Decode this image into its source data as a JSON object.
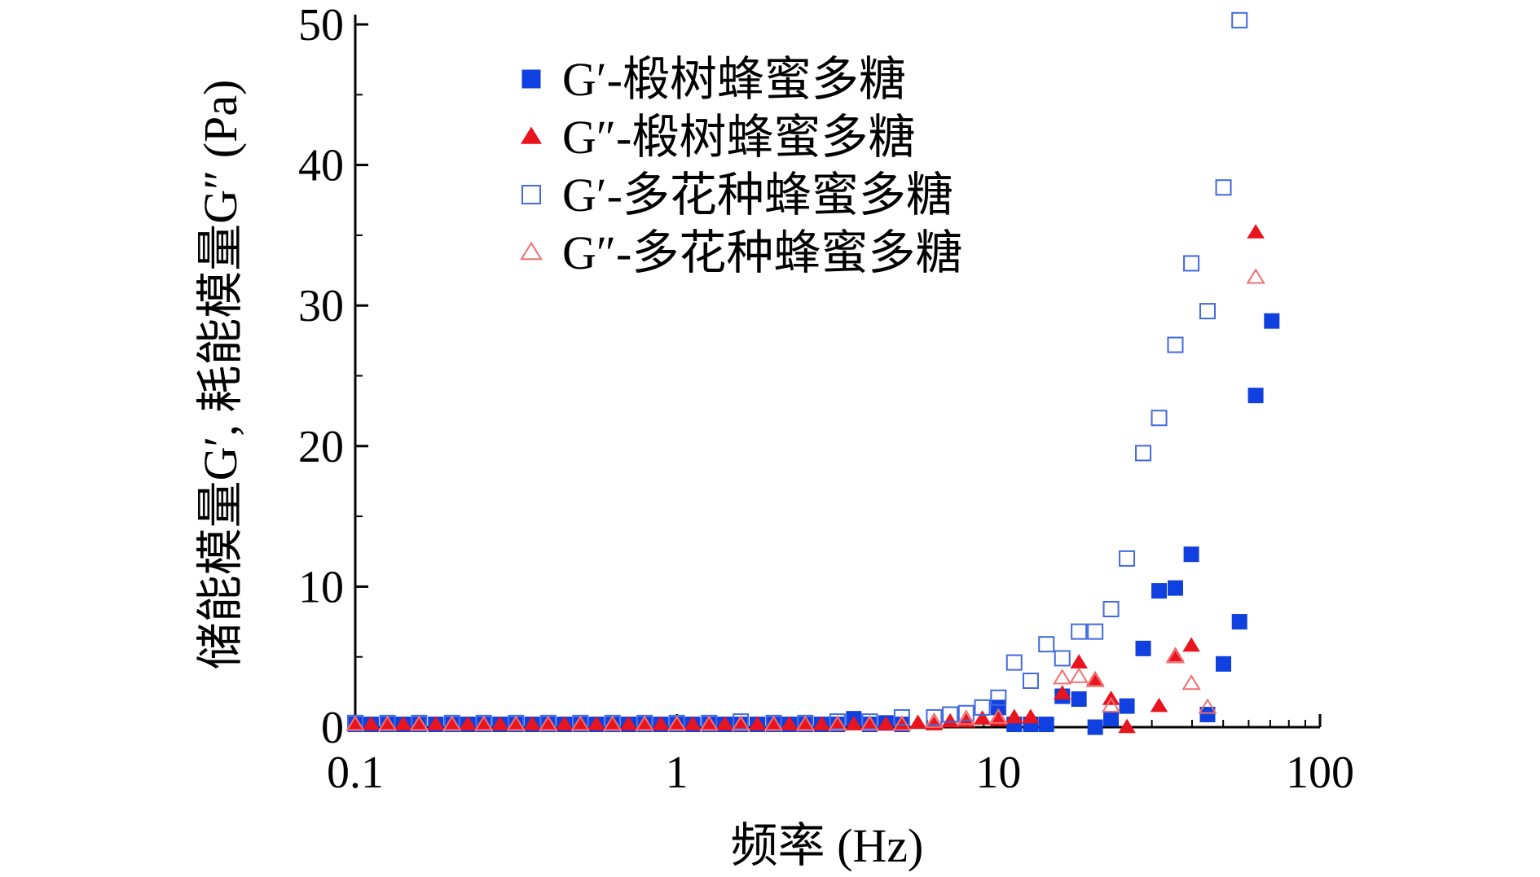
{
  "chart_data": {
    "type": "scatter",
    "title": "",
    "xlabel": "频率 (Hz)",
    "ylabel": "储能模量G′, 耗能模量G″ (Pa)",
    "xscale": "log",
    "xlim": [
      0.1,
      100
    ],
    "ylim": [
      0,
      50
    ],
    "x_ticks": [
      {
        "value": 0.1,
        "label": "0.1"
      },
      {
        "value": 1,
        "label": "1"
      },
      {
        "value": 10,
        "label": "10"
      },
      {
        "value": 100,
        "label": "100"
      }
    ],
    "y_ticks": [
      {
        "value": 0,
        "label": "0"
      },
      {
        "value": 10,
        "label": "10"
      },
      {
        "value": 20,
        "label": "20"
      },
      {
        "value": 30,
        "label": "30"
      },
      {
        "value": 40,
        "label": "40"
      },
      {
        "value": 50,
        "label": "50"
      }
    ],
    "legend_position": "top-left",
    "series": [
      {
        "name": "G′-椴树蜂蜜多糖",
        "marker": "square",
        "filled": true,
        "color": "#1040e0",
        "points": [
          [
            0.1,
            0.2
          ],
          [
            0.112,
            0.2
          ],
          [
            0.126,
            0.2
          ],
          [
            0.141,
            0.2
          ],
          [
            0.158,
            0.2
          ],
          [
            0.178,
            0.2
          ],
          [
            0.2,
            0.2
          ],
          [
            0.224,
            0.2
          ],
          [
            0.251,
            0.2
          ],
          [
            0.282,
            0.2
          ],
          [
            0.316,
            0.2
          ],
          [
            0.355,
            0.2
          ],
          [
            0.398,
            0.2
          ],
          [
            0.447,
            0.2
          ],
          [
            0.501,
            0.2
          ],
          [
            0.562,
            0.2
          ],
          [
            0.631,
            0.2
          ],
          [
            0.708,
            0.2
          ],
          [
            0.794,
            0.2
          ],
          [
            0.891,
            0.2
          ],
          [
            1.0,
            0.2
          ],
          [
            1.12,
            0.2
          ],
          [
            1.26,
            0.2
          ],
          [
            1.41,
            0.2
          ],
          [
            1.58,
            0.2
          ],
          [
            1.78,
            0.2
          ],
          [
            2.0,
            0.2
          ],
          [
            2.24,
            0.2
          ],
          [
            2.51,
            0.2
          ],
          [
            2.82,
            0.2
          ],
          [
            3.16,
            0.2
          ],
          [
            3.55,
            0.6
          ],
          [
            3.98,
            0.2
          ],
          [
            4.47,
            0.3
          ],
          [
            5.01,
            0.2
          ],
          [
            10.0,
            1.4
          ],
          [
            11.2,
            0.2
          ],
          [
            12.6,
            0.2
          ],
          [
            14.1,
            0.2
          ],
          [
            15.8,
            2.2
          ],
          [
            17.8,
            2.0
          ],
          [
            20.0,
            0.0
          ],
          [
            22.4,
            0.6
          ],
          [
            25.1,
            1.5
          ],
          [
            28.2,
            5.6
          ],
          [
            31.6,
            9.7
          ],
          [
            35.5,
            9.9
          ],
          [
            39.8,
            12.3
          ],
          [
            44.7,
            0.9
          ],
          [
            50.1,
            4.5
          ],
          [
            56.2,
            7.5
          ],
          [
            63.1,
            23.6
          ],
          [
            70.8,
            28.9
          ]
        ]
      },
      {
        "name": "G″-椴树蜂蜜多糖",
        "marker": "triangle",
        "filled": true,
        "color": "#e8141e",
        "points": [
          [
            0.1,
            0.2
          ],
          [
            0.112,
            0.2
          ],
          [
            0.126,
            0.2
          ],
          [
            0.141,
            0.2
          ],
          [
            0.158,
            0.2
          ],
          [
            0.178,
            0.2
          ],
          [
            0.2,
            0.2
          ],
          [
            0.224,
            0.2
          ],
          [
            0.251,
            0.2
          ],
          [
            0.282,
            0.2
          ],
          [
            0.316,
            0.2
          ],
          [
            0.355,
            0.2
          ],
          [
            0.398,
            0.2
          ],
          [
            0.447,
            0.2
          ],
          [
            0.501,
            0.2
          ],
          [
            0.562,
            0.2
          ],
          [
            0.631,
            0.2
          ],
          [
            0.708,
            0.2
          ],
          [
            0.794,
            0.2
          ],
          [
            0.891,
            0.2
          ],
          [
            1.0,
            0.2
          ],
          [
            1.12,
            0.2
          ],
          [
            1.26,
            0.2
          ],
          [
            1.41,
            0.2
          ],
          [
            1.58,
            0.2
          ],
          [
            1.78,
            0.2
          ],
          [
            2.0,
            0.2
          ],
          [
            2.24,
            0.2
          ],
          [
            2.51,
            0.2
          ],
          [
            2.82,
            0.2
          ],
          [
            3.16,
            0.2
          ],
          [
            3.55,
            0.2
          ],
          [
            3.98,
            0.2
          ],
          [
            4.47,
            0.2
          ],
          [
            5.01,
            0.2
          ],
          [
            5.62,
            0.3
          ],
          [
            6.31,
            0.2
          ],
          [
            7.08,
            0.4
          ],
          [
            7.94,
            0.4
          ],
          [
            8.91,
            0.6
          ],
          [
            10.0,
            0.5
          ],
          [
            11.2,
            0.7
          ],
          [
            12.6,
            0.7
          ],
          [
            15.8,
            2.4
          ],
          [
            17.8,
            4.6
          ],
          [
            20.0,
            3.4
          ],
          [
            22.4,
            2.0
          ],
          [
            25.1,
            0.0
          ],
          [
            31.6,
            1.5
          ],
          [
            35.5,
            5.1
          ],
          [
            39.8,
            5.8
          ],
          [
            63.1,
            35.2
          ]
        ]
      },
      {
        "name": "G′-多花种蜂蜜多糖",
        "marker": "square",
        "filled": false,
        "color": "#4169e1",
        "points": [
          [
            0.1,
            0.3
          ],
          [
            0.126,
            0.3
          ],
          [
            0.158,
            0.3
          ],
          [
            0.2,
            0.3
          ],
          [
            0.251,
            0.3
          ],
          [
            0.316,
            0.3
          ],
          [
            0.398,
            0.3
          ],
          [
            0.501,
            0.3
          ],
          [
            0.631,
            0.3
          ],
          [
            0.794,
            0.3
          ],
          [
            1.0,
            0.3
          ],
          [
            1.26,
            0.3
          ],
          [
            1.58,
            0.4
          ],
          [
            2.0,
            0.3
          ],
          [
            2.51,
            0.3
          ],
          [
            3.16,
            0.4
          ],
          [
            3.98,
            0.4
          ],
          [
            5.01,
            0.7
          ],
          [
            6.31,
            0.7
          ],
          [
            7.08,
            0.9
          ],
          [
            7.94,
            1.0
          ],
          [
            8.91,
            1.4
          ],
          [
            10.0,
            2.1
          ],
          [
            11.2,
            4.6
          ],
          [
            12.6,
            3.3
          ],
          [
            14.1,
            5.9
          ],
          [
            15.8,
            4.9
          ],
          [
            17.8,
            6.8
          ],
          [
            20.0,
            6.8
          ],
          [
            22.4,
            8.4
          ],
          [
            25.1,
            12.0
          ],
          [
            28.2,
            19.5
          ],
          [
            31.6,
            22.0
          ],
          [
            35.5,
            27.2
          ],
          [
            39.8,
            33.0
          ],
          [
            44.7,
            29.6
          ],
          [
            50.1,
            38.4
          ],
          [
            56.2,
            50.3
          ]
        ]
      },
      {
        "name": "G″-多花种蜂蜜多糖",
        "marker": "triangle",
        "filled": false,
        "color": "#f07070",
        "points": [
          [
            0.1,
            0.2
          ],
          [
            0.126,
            0.2
          ],
          [
            0.158,
            0.2
          ],
          [
            0.2,
            0.2
          ],
          [
            0.251,
            0.2
          ],
          [
            0.316,
            0.2
          ],
          [
            0.398,
            0.2
          ],
          [
            0.501,
            0.2
          ],
          [
            0.631,
            0.2
          ],
          [
            0.794,
            0.2
          ],
          [
            1.0,
            0.2
          ],
          [
            1.26,
            0.2
          ],
          [
            1.58,
            0.2
          ],
          [
            2.0,
            0.2
          ],
          [
            2.51,
            0.2
          ],
          [
            3.16,
            0.2
          ],
          [
            3.98,
            0.2
          ],
          [
            5.01,
            0.2
          ],
          [
            6.31,
            0.4
          ],
          [
            7.94,
            0.6
          ],
          [
            10.0,
            0.7
          ],
          [
            15.8,
            3.5
          ],
          [
            17.8,
            3.6
          ],
          [
            20.0,
            3.3
          ],
          [
            22.4,
            1.5
          ],
          [
            35.5,
            5.0
          ],
          [
            39.8,
            3.1
          ],
          [
            44.7,
            1.4
          ],
          [
            63.1,
            32.0
          ]
        ]
      }
    ]
  }
}
